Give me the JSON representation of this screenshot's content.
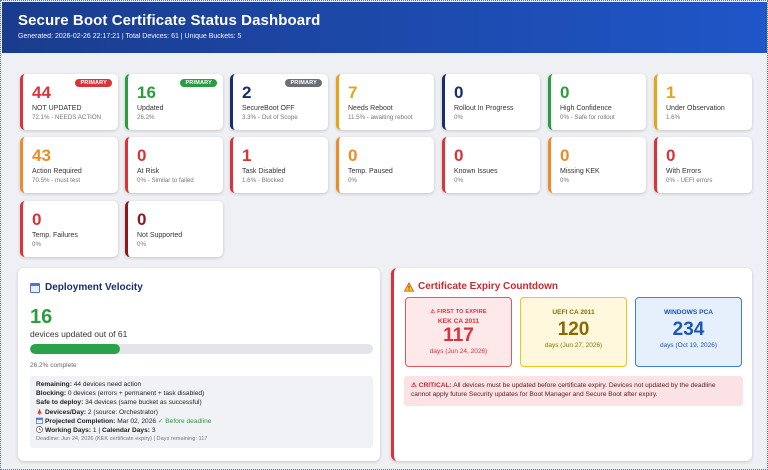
{
  "header": {
    "title": "Secure Boot Certificate Status Dashboard",
    "subtitle": "Generated: 2026-02-26 22:17:21 | Total Devices: 61 | Unique Buckets: 5"
  },
  "cards": [
    {
      "value": "44",
      "label": "NOT UPDATED",
      "detail": "72.1% - NEEDS ACTION",
      "color": "#d9343a",
      "badge": "PRIMARY",
      "badge_color": "#d9343a"
    },
    {
      "value": "16",
      "label": "Updated",
      "detail": "26.2%",
      "color": "#2a9d3f",
      "badge": "PRIMARY",
      "badge_color": "#2a9d3f"
    },
    {
      "value": "2",
      "label": "SecureBoot OFF",
      "detail": "3.3% - Out of Scope",
      "color": "#1a2e6e",
      "badge": "PRIMARY",
      "badge_color": "#6b6f78"
    },
    {
      "value": "7",
      "label": "Needs Reboot",
      "detail": "11.5% - awaiting reboot",
      "color": "#e8a317",
      "badge": "",
      "badge_color": ""
    },
    {
      "value": "0",
      "label": "Rollout In Progress",
      "detail": "0%",
      "color": "#1a2e6e",
      "badge": "",
      "badge_color": ""
    },
    {
      "value": "0",
      "label": "High Confidence",
      "detail": "0% - Safe for rollout",
      "color": "#2a9d3f",
      "badge": "",
      "badge_color": ""
    },
    {
      "value": "1",
      "label": "Under Observation",
      "detail": "1.6%",
      "color": "#e8a317",
      "badge": "",
      "badge_color": ""
    },
    {
      "value": "43",
      "label": "Action Required",
      "detail": "70.5% - must test",
      "color": "#f08a24",
      "badge": "",
      "badge_color": ""
    },
    {
      "value": "0",
      "label": "At Risk",
      "detail": "0% - Similar to failed",
      "color": "#d9343a",
      "badge": "",
      "badge_color": ""
    },
    {
      "value": "1",
      "label": "Task Disabled",
      "detail": "1.6% - Blocked",
      "color": "#d9343a",
      "badge": "",
      "badge_color": ""
    },
    {
      "value": "0",
      "label": "Temp. Paused",
      "detail": "0%",
      "color": "#f08a24",
      "badge": "",
      "badge_color": ""
    },
    {
      "value": "0",
      "label": "Known Issues",
      "detail": "0%",
      "color": "#d9343a",
      "badge": "",
      "badge_color": ""
    },
    {
      "value": "0",
      "label": "Missing KEK",
      "detail": "0%",
      "color": "#f08a24",
      "badge": "",
      "badge_color": ""
    },
    {
      "value": "0",
      "label": "With Errors",
      "detail": "0% - UEFI errors",
      "color": "#d9343a",
      "badge": "",
      "badge_color": ""
    },
    {
      "value": "0",
      "label": "Temp. Failures",
      "detail": "0%",
      "color": "#d9343a",
      "badge": "",
      "badge_color": ""
    },
    {
      "value": "0",
      "label": "Not Supported",
      "detail": "0%",
      "color": "#8b1a1f",
      "badge": "",
      "badge_color": ""
    }
  ],
  "velocity": {
    "title": "Deployment Velocity",
    "count": "16",
    "out_of": "devices updated out of 61",
    "progress": 0.262,
    "complete": "26.2% complete",
    "remaining_label": "Remaining:",
    "remaining": "44 devices need action",
    "blocking_label": "Blocking:",
    "blocking": "0 devices (errors + permanent + task disabled)",
    "safe_label": "Safe to deploy:",
    "safe": "34 devices (same bucket as successful)",
    "perday_label": "Devices/Day:",
    "perday": "2 (source: Orchestrator)",
    "projected_label": "Projected Completion:",
    "projected": "Mar 02, 2026",
    "projected_ok": "✓ Before deadline",
    "working_label": "Working Days:",
    "working": "1 |",
    "calendar_label": "Calendar Days:",
    "calendar": "3",
    "deadline": "Deadline: Jun 24, 2026 (KEK certificate expiry) | Days remaining: 117"
  },
  "expiry": {
    "title": "Certificate Expiry Countdown",
    "certs": [
      {
        "tag": "⚠ FIRST TO EXPIRE",
        "name": "KEK CA 2011",
        "days": "117",
        "date": "days (Jun 24, 2026)",
        "color": "#d9343a",
        "bg": "#fde8ea",
        "border": "#e8545a"
      },
      {
        "tag": "",
        "name": "UEFI CA 2011",
        "days": "120",
        "date": "days (Jun 27, 2026)",
        "color": "#8a6a00",
        "bg": "#fff8dc",
        "border": "#f0c419"
      },
      {
        "tag": "",
        "name": "WINDOWS PCA",
        "days": "234",
        "date": "days (Oct 19, 2026)",
        "color": "#1a56b8",
        "bg": "#e6f0fd",
        "border": "#3b7ee0"
      }
    ],
    "critical_label": "⚠ CRITICAL:",
    "critical_text": "All devices must be updated before certificate expiry. Devices not updated by the deadline cannot apply future Security updates for Boot Manager and Secure Boot after expiry."
  }
}
